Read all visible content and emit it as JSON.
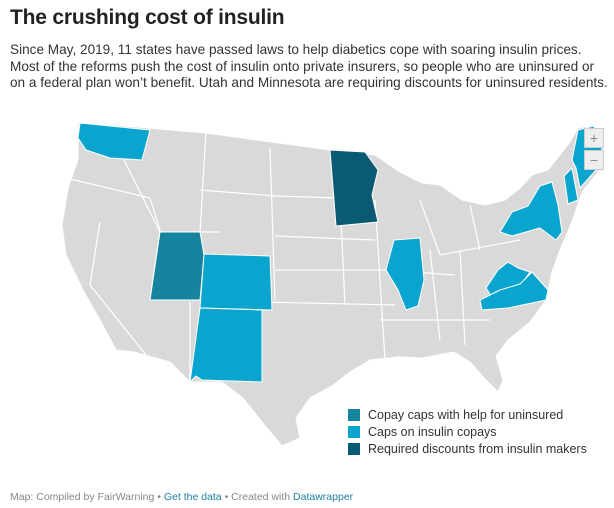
{
  "title": "The crushing cost of insulin",
  "description": "Since May, 2019, 11 states have passed laws to help diabetics cope with soaring insulin prices. Most of the reforms push the cost of insulin onto private insurers, so people who are uninsured or on a federal plan won’t benefit. Utah and Minnesota are requiring discounts for uninsured residents.",
  "colors": {
    "base": "#d9d9d9",
    "copay_caps_help_uninsured": "#16849e",
    "caps_on_copays": "#0aa5ce",
    "required_discounts": "#0b5a73"
  },
  "map": {
    "zoom_in_label": "+",
    "zoom_out_label": "−",
    "states_highlighted": [
      {
        "state": "Utah",
        "category": "Copay caps with help for uninsured"
      },
      {
        "state": "Minnesota",
        "category": "Required discounts from insulin makers"
      },
      {
        "state": "Washington",
        "category": "Caps on insulin copays"
      },
      {
        "state": "Colorado",
        "category": "Caps on insulin copays"
      },
      {
        "state": "New Mexico",
        "category": "Caps on insulin copays"
      },
      {
        "state": "Illinois",
        "category": "Caps on insulin copays"
      },
      {
        "state": "West Virginia",
        "category": "Caps on insulin copays"
      },
      {
        "state": "Virginia",
        "category": "Caps on insulin copays"
      },
      {
        "state": "New York",
        "category": "Caps on insulin copays"
      },
      {
        "state": "New Hampshire",
        "category": "Caps on insulin copays"
      },
      {
        "state": "Maine",
        "category": "Caps on insulin copays"
      }
    ]
  },
  "legend": [
    {
      "label": "Copay caps with help for uninsured",
      "color": "#16849e"
    },
    {
      "label": "Caps on insulin copays",
      "color": "#0aa5ce"
    },
    {
      "label": "Required discounts from insulin makers",
      "color": "#0b5a73"
    }
  ],
  "footer": {
    "source": "Map: Compiled by FairWarning",
    "separator": " • ",
    "data_link": "Get the data",
    "created_with": "Created with ",
    "tool_link": "Datawrapper"
  }
}
